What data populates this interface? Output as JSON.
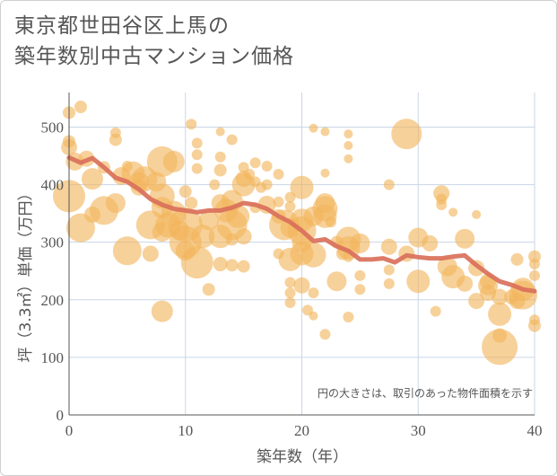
{
  "title_line1": "東京都世田谷区上馬の",
  "title_line2": "築年数別中古マンション価格",
  "chart_data": {
    "type": "scatter",
    "xlabel": "築年数（年）",
    "ylabel": "坪（3.3㎡）単価（万円）",
    "xlim": [
      0,
      40
    ],
    "ylim": [
      0,
      560
    ],
    "xticks": [
      0,
      10,
      20,
      30,
      40
    ],
    "yticks": [
      0,
      100,
      200,
      300,
      400,
      500
    ],
    "grid": true,
    "note": "円の大きさは、取引のあった物件面積を示す",
    "colors": {
      "bubble": "#f2b45c",
      "trend": "#d9705a",
      "grid": "#c9d6e6"
    },
    "bubbles": [
      [
        0,
        525,
        7
      ],
      [
        0,
        475,
        7
      ],
      [
        0,
        465,
        9
      ],
      [
        0,
        380,
        18
      ],
      [
        0.5,
        440,
        10
      ],
      [
        1,
        535,
        7
      ],
      [
        1,
        325,
        16
      ],
      [
        1.5,
        445,
        9
      ],
      [
        2,
        410,
        12
      ],
      [
        2,
        348,
        9
      ],
      [
        3,
        355,
        16
      ],
      [
        3,
        430,
        7
      ],
      [
        4,
        490,
        6
      ],
      [
        4,
        478,
        7
      ],
      [
        4,
        368,
        11
      ],
      [
        4.5,
        415,
        10
      ],
      [
        5,
        432,
        6
      ],
      [
        5,
        285,
        16
      ],
      [
        5.5,
        420,
        13
      ],
      [
        6,
        405,
        11
      ],
      [
        6,
        395,
        9
      ],
      [
        6.5,
        410,
        14
      ],
      [
        7,
        330,
        16
      ],
      [
        7,
        280,
        9
      ],
      [
        7.5,
        405,
        11
      ],
      [
        8,
        440,
        17
      ],
      [
        8,
        380,
        14
      ],
      [
        8,
        360,
        12
      ],
      [
        8,
        318,
        11
      ],
      [
        8,
        180,
        12
      ],
      [
        8.5,
        330,
        14
      ],
      [
        9,
        440,
        12
      ],
      [
        9,
        350,
        14
      ],
      [
        9.5,
        320,
        11
      ],
      [
        10,
        388,
        7
      ],
      [
        10,
        330,
        19
      ],
      [
        10,
        300,
        18
      ],
      [
        10,
        285,
        11
      ],
      [
        10.5,
        368,
        7
      ],
      [
        10.5,
        505,
        6
      ],
      [
        11,
        472,
        6
      ],
      [
        11,
        452,
        6
      ],
      [
        11,
        428,
        6
      ],
      [
        11,
        265,
        18
      ],
      [
        11.5,
        310,
        13
      ],
      [
        12,
        338,
        11
      ],
      [
        12,
        218,
        7
      ],
      [
        12.5,
        400,
        6
      ],
      [
        13,
        492,
        5
      ],
      [
        13,
        448,
        6
      ],
      [
        13,
        425,
        7
      ],
      [
        13,
        368,
        10
      ],
      [
        13,
        310,
        13
      ],
      [
        13,
        262,
        8
      ],
      [
        13.5,
        355,
        13
      ],
      [
        14,
        478,
        6
      ],
      [
        14,
        372,
        12
      ],
      [
        14,
        330,
        17
      ],
      [
        14,
        305,
        7
      ],
      [
        14,
        260,
        7
      ],
      [
        14.5,
        345,
        13
      ],
      [
        15,
        430,
        6
      ],
      [
        15,
        410,
        9
      ],
      [
        15,
        400,
        13
      ],
      [
        15,
        310,
        9
      ],
      [
        15,
        258,
        7
      ],
      [
        15.5,
        418,
        6
      ],
      [
        16,
        438,
        6
      ],
      [
        16,
        405,
        6
      ],
      [
        16,
        360,
        6
      ],
      [
        16.5,
        395,
        6
      ],
      [
        17,
        432,
        6
      ],
      [
        17,
        400,
        6
      ],
      [
        17,
        365,
        10
      ],
      [
        18,
        418,
        6
      ],
      [
        18,
        370,
        6
      ],
      [
        18,
        345,
        8
      ],
      [
        18,
        280,
        6
      ],
      [
        18.5,
        330,
        17
      ],
      [
        19,
        378,
        6
      ],
      [
        19,
        362,
        6
      ],
      [
        19,
        325,
        11
      ],
      [
        19,
        270,
        13
      ],
      [
        19,
        230,
        6
      ],
      [
        19,
        212,
        6
      ],
      [
        19,
        195,
        6
      ],
      [
        20,
        395,
        13
      ],
      [
        20,
        338,
        13
      ],
      [
        20,
        320,
        16
      ],
      [
        20,
        300,
        11
      ],
      [
        20,
        280,
        13
      ],
      [
        20,
        225,
        9
      ],
      [
        20.5,
        182,
        6
      ],
      [
        21,
        498,
        5
      ],
      [
        21,
        345,
        11
      ],
      [
        21,
        278,
        14
      ],
      [
        21,
        212,
        6
      ],
      [
        21,
        172,
        5
      ],
      [
        22,
        492,
        5
      ],
      [
        22,
        420,
        5
      ],
      [
        22,
        368,
        11
      ],
      [
        22,
        358,
        14
      ],
      [
        22,
        345,
        13
      ],
      [
        22,
        140,
        6
      ],
      [
        22.5,
        335,
        6
      ],
      [
        23,
        300,
        7
      ],
      [
        23,
        232,
        11
      ],
      [
        23.5,
        280,
        7
      ],
      [
        24,
        488,
        5
      ],
      [
        24,
        468,
        5
      ],
      [
        24,
        445,
        5
      ],
      [
        24,
        305,
        14
      ],
      [
        24,
        290,
        13
      ],
      [
        24,
        275,
        6
      ],
      [
        24,
        170,
        6
      ],
      [
        25,
        298,
        11
      ],
      [
        25,
        242,
        6
      ],
      [
        25,
        218,
        6
      ],
      [
        27.5,
        400,
        6
      ],
      [
        27.5,
        292,
        9
      ],
      [
        27.5,
        252,
        6
      ],
      [
        27.5,
        228,
        6
      ],
      [
        29,
        488,
        17
      ],
      [
        29,
        280,
        9
      ],
      [
        30,
        308,
        11
      ],
      [
        30,
        232,
        13
      ],
      [
        31,
        298,
        9
      ],
      [
        31.5,
        180,
        6
      ],
      [
        32,
        385,
        9
      ],
      [
        32,
        375,
        6
      ],
      [
        32,
        365,
        6
      ],
      [
        32.5,
        258,
        11
      ],
      [
        33,
        240,
        13
      ],
      [
        33,
        352,
        5
      ],
      [
        34,
        306,
        11
      ],
      [
        34,
        228,
        9
      ],
      [
        35,
        348,
        5
      ],
      [
        35,
        255,
        9
      ],
      [
        35,
        198,
        9
      ],
      [
        36,
        232,
        9
      ],
      [
        36,
        225,
        11
      ],
      [
        36,
        212,
        9
      ],
      [
        37,
        205,
        9
      ],
      [
        37,
        175,
        13
      ],
      [
        37,
        138,
        8
      ],
      [
        37,
        118,
        20
      ],
      [
        38,
        205,
        8
      ],
      [
        38.5,
        198,
        9
      ],
      [
        38.5,
        270,
        7
      ],
      [
        39,
        218,
        13
      ],
      [
        39,
        208,
        16
      ],
      [
        40,
        275,
        7
      ],
      [
        40,
        262,
        6
      ],
      [
        40,
        242,
        6
      ],
      [
        40,
        165,
        6
      ],
      [
        40,
        155,
        7
      ]
    ],
    "trend": {
      "x": [
        0,
        1,
        2,
        3,
        4,
        5,
        6,
        7,
        8,
        9,
        10,
        11,
        12,
        13,
        14,
        15,
        16,
        17,
        18,
        19,
        20,
        21,
        22,
        23,
        24,
        25,
        26,
        27,
        28,
        29,
        30,
        31,
        32,
        33,
        34,
        35,
        36,
        37,
        38,
        39,
        40
      ],
      "y": [
        447,
        438,
        446,
        430,
        412,
        405,
        392,
        375,
        365,
        358,
        355,
        352,
        355,
        355,
        360,
        368,
        365,
        358,
        345,
        335,
        320,
        302,
        305,
        293,
        285,
        270,
        270,
        272,
        265,
        277,
        274,
        272,
        272,
        275,
        277,
        260,
        245,
        232,
        226,
        218,
        215
      ]
    }
  }
}
